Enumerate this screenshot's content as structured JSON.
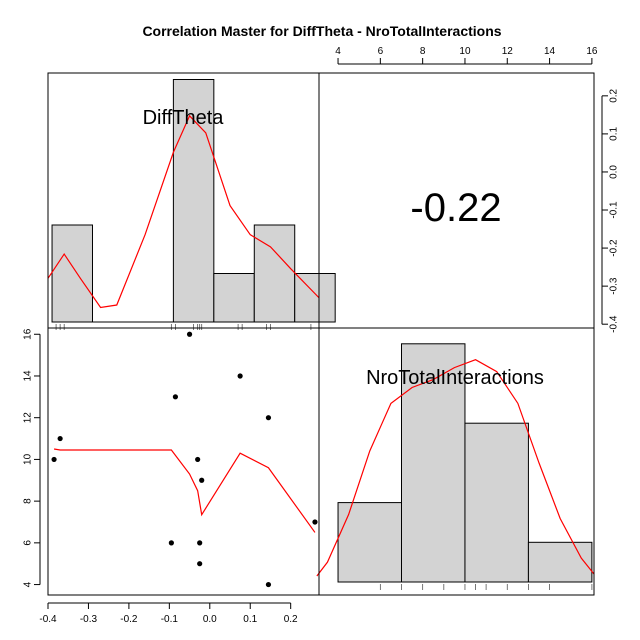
{
  "chart_data": {
    "type": "pairs",
    "title": "Correlation Master for DiffTheta - NroTotalInteractions",
    "variables": [
      "DiffTheta",
      "NroTotalInteractions"
    ],
    "correlation_label": "-0.22",
    "x_axis": {
      "bottom_ticks": [
        "-0.4",
        "-0.3",
        "-0.2",
        "-0.1",
        "0.0",
        "0.1",
        "0.2"
      ],
      "top_ticks": [
        "4",
        "6",
        "8",
        "10",
        "12",
        "14",
        "16"
      ],
      "bottom_range": [
        -0.4,
        0.27
      ],
      "top_range": [
        3.1,
        16.1
      ]
    },
    "y_axis": {
      "left_ticks": [
        "4",
        "6",
        "8",
        "10",
        "12",
        "14",
        "16"
      ],
      "right_ticks": [
        "-0.4",
        "-0.3",
        "-0.2",
        "-0.1",
        "0.0",
        "0.1",
        "0.2"
      ],
      "left_range": [
        3.5,
        16.3
      ],
      "right_range": [
        -0.41,
        0.26
      ]
    },
    "hist_difftheta": {
      "bins": [
        [
          -0.39,
          -0.29
        ],
        [
          -0.29,
          -0.09
        ],
        [
          -0.09,
          0.01
        ],
        [
          0.01,
          0.11
        ],
        [
          0.11,
          0.21
        ],
        [
          0.21,
          0.31
        ]
      ],
      "values": [
        2,
        0,
        5,
        1,
        2,
        1
      ],
      "density_curve": [
        [
          -0.4,
          0.9
        ],
        [
          -0.36,
          1.4
        ],
        [
          -0.32,
          0.9
        ],
        [
          -0.27,
          0.3
        ],
        [
          -0.23,
          0.35
        ],
        [
          -0.16,
          1.8
        ],
        [
          -0.09,
          3.5
        ],
        [
          -0.05,
          4.25
        ],
        [
          -0.01,
          3.9
        ],
        [
          0.05,
          2.4
        ],
        [
          0.1,
          1.8
        ],
        [
          0.15,
          1.55
        ],
        [
          0.2,
          1.1
        ],
        [
          0.27,
          0.5
        ]
      ],
      "rug": [
        -0.38,
        -0.37,
        -0.36,
        -0.095,
        -0.085,
        -0.04,
        -0.03,
        -0.025,
        -0.02,
        0.07,
        0.08,
        0.14,
        0.15,
        0.25
      ]
    },
    "hist_interactions": {
      "bins": [
        [
          4,
          7
        ],
        [
          7,
          10
        ],
        [
          10,
          13
        ],
        [
          13,
          16
        ]
      ],
      "values": [
        2,
        6,
        4,
        1
      ],
      "density_curve": [
        [
          3,
          0.15
        ],
        [
          3.5,
          0.5
        ],
        [
          4.5,
          1.7
        ],
        [
          5.5,
          3.3
        ],
        [
          6.5,
          4.5
        ],
        [
          7.5,
          4.9
        ],
        [
          8.5,
          5.1
        ],
        [
          9.5,
          5.4
        ],
        [
          10.5,
          5.6
        ],
        [
          11.5,
          5.3
        ],
        [
          12.5,
          4.5
        ],
        [
          13.5,
          3.0
        ],
        [
          14.5,
          1.6
        ],
        [
          15.5,
          0.6
        ],
        [
          16.1,
          0.2
        ]
      ],
      "rug": [
        6,
        7,
        8,
        9,
        10,
        10.5,
        11,
        12,
        13,
        14,
        16
      ]
    },
    "scatter": [
      {
        "x": -0.385,
        "y": 10
      },
      {
        "x": -0.37,
        "y": 11
      },
      {
        "x": -0.095,
        "y": 6
      },
      {
        "x": -0.085,
        "y": 13
      },
      {
        "x": -0.05,
        "y": 16
      },
      {
        "x": -0.03,
        "y": 10
      },
      {
        "x": -0.025,
        "y": 6
      },
      {
        "x": -0.025,
        "y": 5
      },
      {
        "x": -0.02,
        "y": 9
      },
      {
        "x": 0.075,
        "y": 14
      },
      {
        "x": 0.145,
        "y": 12
      },
      {
        "x": 0.145,
        "y": 4
      },
      {
        "x": 0.26,
        "y": 7
      }
    ],
    "smooth_line": [
      [
        -0.385,
        10.5
      ],
      [
        -0.37,
        10.45
      ],
      [
        -0.095,
        10.45
      ],
      [
        -0.05,
        9.3
      ],
      [
        -0.03,
        8.5
      ],
      [
        -0.02,
        7.35
      ],
      [
        0.075,
        10.3
      ],
      [
        0.145,
        9.6
      ],
      [
        0.26,
        6.5
      ]
    ],
    "colors": {
      "bars": "#d3d3d3",
      "curve": "#ff0000",
      "points": "#000000"
    }
  }
}
